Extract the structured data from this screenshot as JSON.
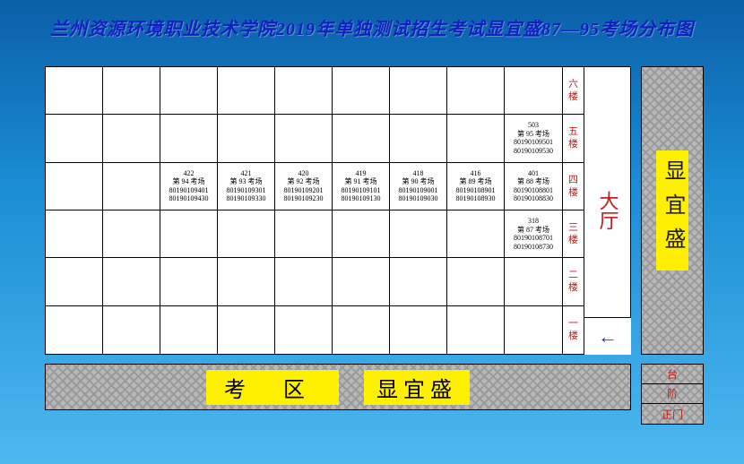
{
  "title": "兰州资源环境职业技术学院2019年单独测试招生考试显宜盛87—95考场分布图",
  "floors": [
    "六楼",
    "五楼",
    "四楼",
    "三楼",
    "二楼",
    "一楼"
  ],
  "lobby": "大厅",
  "arrow": "←",
  "right_building": "显宜盛",
  "bottom_left": "考 区",
  "bottom_right": "显宜盛",
  "stairs": [
    "台",
    "阶",
    "正门"
  ],
  "colors": {
    "frame_top": "#0a5fa8",
    "frame_bottom": "#4db8f0",
    "title_color": "#1020c0",
    "highlight": "#fff000",
    "red_text": "#c02020",
    "grid_line": "#000000",
    "hatch_bg": "#b8b8b8",
    "hatch_fg": "#9a9a9a"
  },
  "rooms": {
    "r1c8": {
      "room": "503",
      "name": "第 95 考场",
      "n1": "80190109501",
      "n2": "80190109530"
    },
    "r2c1": {
      "room": "422",
      "name": "第 94 考场",
      "n1": "80190109401",
      "n2": "80190109430"
    },
    "r2c2": {
      "room": "421",
      "name": "第 93 考场",
      "n1": "80190109301",
      "n2": "80190109330"
    },
    "r2c3": {
      "room": "420",
      "name": "第 92 考场",
      "n1": "80190109201",
      "n2": "80190109230"
    },
    "r2c4": {
      "room": "419",
      "name": "第 91 考场",
      "n1": "80190109101",
      "n2": "80190109130"
    },
    "r2c5": {
      "room": "418",
      "name": "第 90 考场",
      "n1": "80190109001",
      "n2": "80190109030"
    },
    "r2c6": {
      "room": "416",
      "name": "第 89 考场",
      "n1": "80190108901",
      "n2": "80190108930"
    },
    "r2c7": {
      "room": "401",
      "name": "第 88 考场",
      "n1": "80190108801",
      "n2": "80190108830"
    },
    "r3c8": {
      "room": "318",
      "name": "第 87 考场",
      "n1": "80190108701",
      "n2": "80190108730"
    }
  },
  "grid": {
    "cols": 9,
    "rows": 6
  }
}
